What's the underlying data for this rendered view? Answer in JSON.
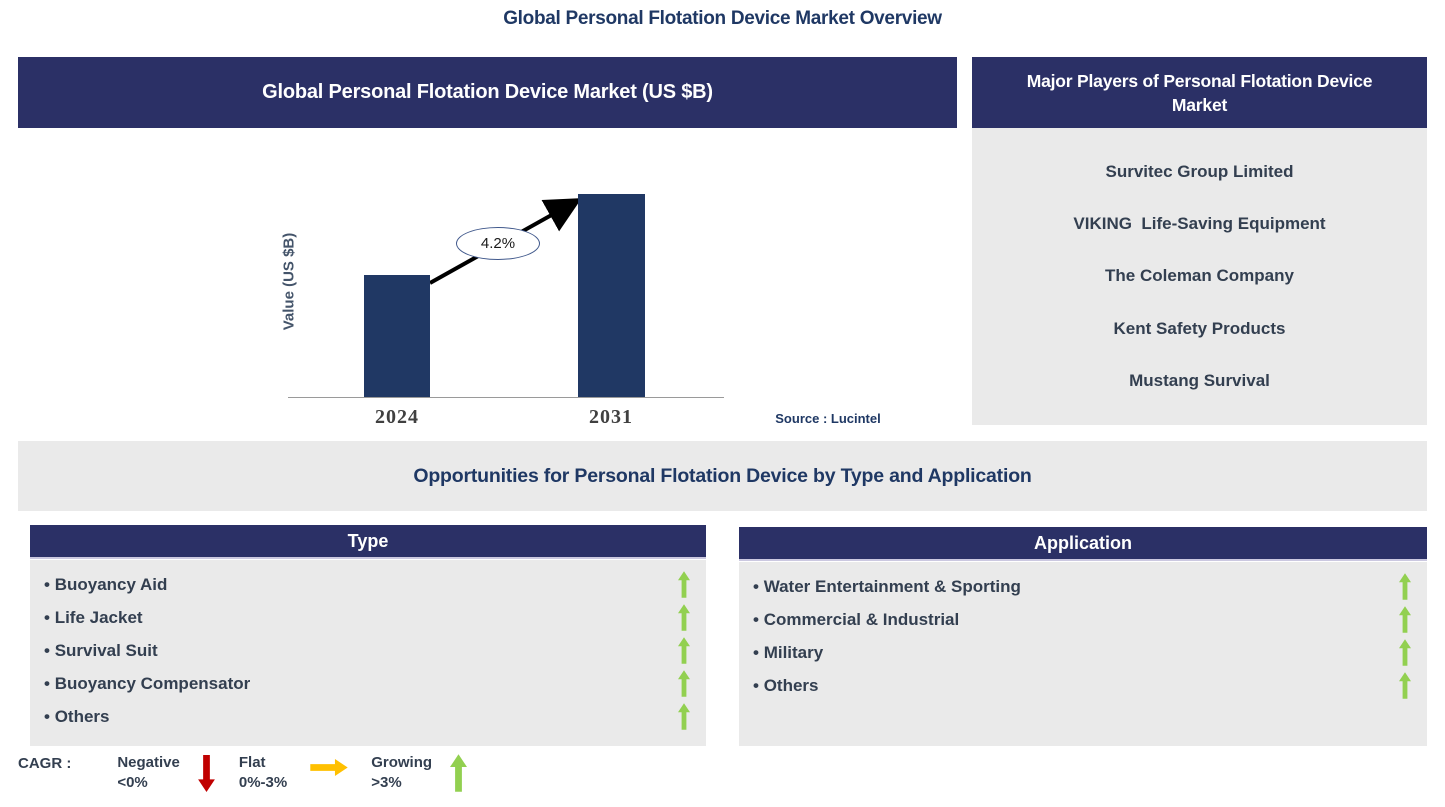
{
  "page": {
    "title": "Global Personal Flotation Device Market Overview"
  },
  "chart_panel": {
    "header": "Global Personal Flotation Device Market (US $B)",
    "source": "Source : Lucintel"
  },
  "chart_data": {
    "type": "bar",
    "title": "Global Personal Flotation Device Market (US $B)",
    "categories": [
      "2024",
      "2031"
    ],
    "values_relative": [
      0.6,
      1.0
    ],
    "value_labels_shown": false,
    "cagr_label": "4.2%",
    "ylabel": "Value (US $B)",
    "xlabel": "",
    "bar_color": "#203864",
    "source": "Source : Lucintel",
    "annotation": "arrow from 2024 bar top to 2031 bar top with CAGR 4.2% in oval"
  },
  "players_panel": {
    "header": "Major Players of Personal Flotation Device Market",
    "companies": [
      "Survitec Group Limited",
      "VIKING  Life-Saving Equipment",
      "The Coleman Company",
      "Kent Safety Products",
      "Mustang Survival"
    ]
  },
  "opportunities": {
    "title": "Opportunities for Personal Flotation Device by Type and Application"
  },
  "type_panel": {
    "header": "Type",
    "items": [
      {
        "label": "Buoyancy Aid",
        "trend": "growing"
      },
      {
        "label": "Life Jacket",
        "trend": "growing"
      },
      {
        "label": "Survival Suit",
        "trend": "growing"
      },
      {
        "label": "Buoyancy Compensator",
        "trend": "growing"
      },
      {
        "label": "Others",
        "trend": "growing"
      }
    ]
  },
  "application_panel": {
    "header": "Application",
    "items": [
      {
        "label": "Water Entertainment & Sporting",
        "trend": "growing"
      },
      {
        "label": "Commercial & Industrial",
        "trend": "growing"
      },
      {
        "label": "Military",
        "trend": "growing"
      },
      {
        "label": "Others",
        "trend": "growing"
      }
    ]
  },
  "legend": {
    "label": "CAGR :",
    "items": [
      {
        "name": "Negative",
        "range": "<0%",
        "icon": "down-arrow",
        "color": "#C00000"
      },
      {
        "name": "Flat",
        "range": "0%-3%",
        "icon": "right-arrow",
        "color": "#FFC000"
      },
      {
        "name": "Growing",
        "range": ">3%",
        "icon": "up-arrow",
        "color": "#92D050"
      }
    ]
  },
  "colors": {
    "navy_header": "#2B3066",
    "bar_navy": "#203864",
    "panel_gray": "#EAEAEA",
    "text_navy": "#1F3864",
    "item_text": "#333F50",
    "growing_green": "#92D050",
    "negative_red": "#C00000",
    "flat_orange": "#FFC000"
  }
}
